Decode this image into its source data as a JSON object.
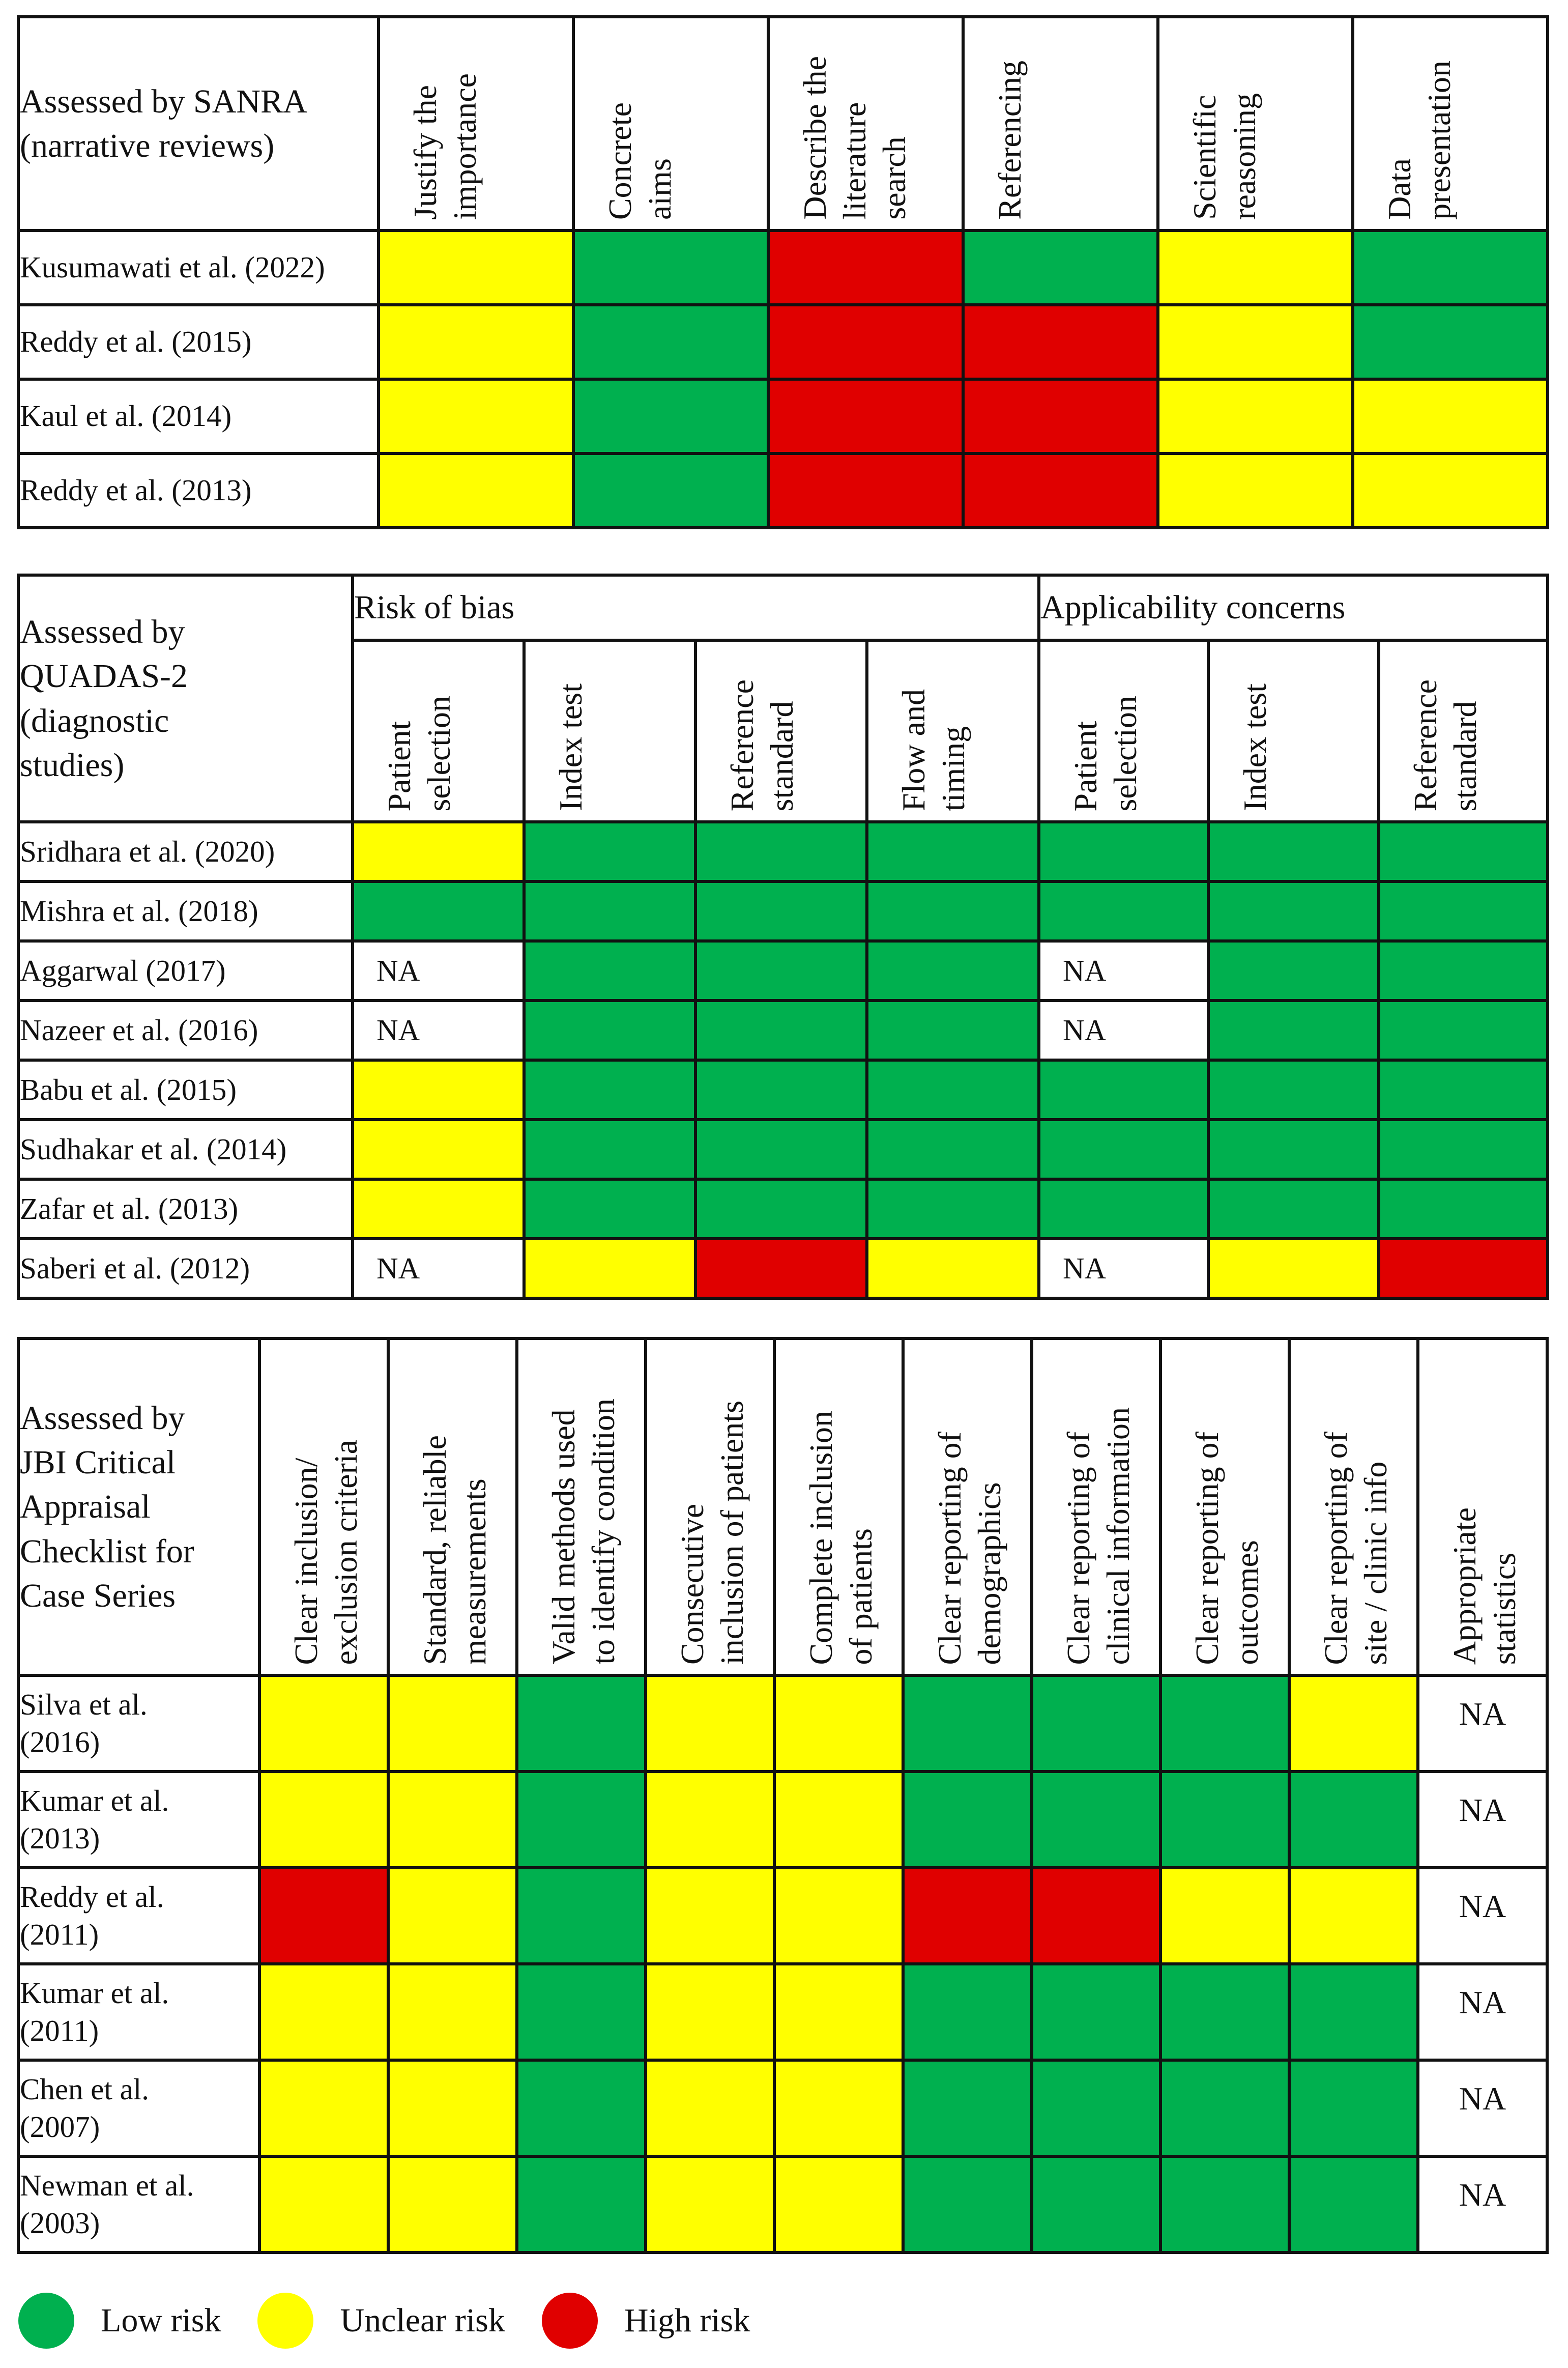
{
  "colors": {
    "low": "#00b04f",
    "unclear": "#ffff00",
    "high": "#e00000",
    "na": "#ffffff"
  },
  "sanra": {
    "corner": "Assessed by SANRA\n(narrative reviews)",
    "headers": [
      "Justify the\nimportance",
      "Concrete\naims",
      "Describe the\nliterature\nsearch",
      "Referencing",
      "Scientific\nreasoning",
      "Data\npresentation"
    ],
    "rows": [
      {
        "study": "Kusumawati et al. (2022)",
        "cells": [
          "unclear",
          "low",
          "high",
          "low",
          "unclear",
          "low"
        ]
      },
      {
        "study": "Reddy et al. (2015)",
        "cells": [
          "unclear",
          "low",
          "high",
          "high",
          "unclear",
          "low"
        ]
      },
      {
        "study": "Kaul et al. (2014)",
        "cells": [
          "unclear",
          "low",
          "high",
          "high",
          "unclear",
          "unclear"
        ]
      },
      {
        "study": "Reddy et al. (2013)",
        "cells": [
          "unclear",
          "low",
          "high",
          "high",
          "unclear",
          "unclear"
        ]
      }
    ]
  },
  "quadas": {
    "corner": "Assessed by\nQUADAS-2\n(diagnostic\nstudies)",
    "group_risk": "Risk of bias",
    "group_applicability": "Applicability concerns",
    "headers": [
      "Patient\nselection",
      "Index test",
      "Reference\nstandard",
      "Flow and\ntiming",
      "Patient\nselection",
      "Index test",
      "Reference\nstandard"
    ],
    "na_label": "NA",
    "rows": [
      {
        "study": "Sridhara et al. (2020)",
        "cells": [
          "unclear",
          "low",
          "low",
          "low",
          "low",
          "low",
          "low"
        ]
      },
      {
        "study": "Mishra et al. (2018)",
        "cells": [
          "low",
          "low",
          "low",
          "low",
          "low",
          "low",
          "low"
        ]
      },
      {
        "study": "Aggarwal (2017)",
        "cells": [
          "na",
          "low",
          "low",
          "low",
          "na",
          "low",
          "low"
        ]
      },
      {
        "study": "Nazeer et al. (2016)",
        "cells": [
          "na",
          "low",
          "low",
          "low",
          "na",
          "low",
          "low"
        ]
      },
      {
        "study": "Babu et al. (2015)",
        "cells": [
          "unclear",
          "low",
          "low",
          "low",
          "low",
          "low",
          "low"
        ]
      },
      {
        "study": "Sudhakar et al. (2014)",
        "cells": [
          "unclear",
          "low",
          "low",
          "low",
          "low",
          "low",
          "low"
        ]
      },
      {
        "study": "Zafar et al. (2013)",
        "cells": [
          "unclear",
          "low",
          "low",
          "low",
          "low",
          "low",
          "low"
        ]
      },
      {
        "study": "Saberi et al. (2012)",
        "cells": [
          "na",
          "unclear",
          "high",
          "unclear",
          "na",
          "unclear",
          "high"
        ]
      }
    ]
  },
  "jbi": {
    "corner": "Assessed by\nJBI Critical\nAppraisal\nChecklist for\nCase Series",
    "headers": [
      "Clear inclusion/\nexclusion criteria",
      "Standard, reliable\nmeasurements",
      "Valid methods used\nto identify condition",
      "Consecutive\ninclusion of patients",
      "Complete inclusion\nof patients",
      "Clear reporting of\ndemographics",
      "Clear reporting of\nclinical information",
      "Clear reporting of\noutcomes",
      "Clear reporting of\nsite / clinic info",
      "Appropriate\nstatistics"
    ],
    "na_label": "NA",
    "rows": [
      {
        "study": "Silva et al.\n(2016)",
        "cells": [
          "unclear",
          "unclear",
          "low",
          "unclear",
          "unclear",
          "low",
          "low",
          "low",
          "unclear",
          "na"
        ]
      },
      {
        "study": "Kumar et al.\n(2013)",
        "cells": [
          "unclear",
          "unclear",
          "low",
          "unclear",
          "unclear",
          "low",
          "low",
          "low",
          "low",
          "na"
        ]
      },
      {
        "study": "Reddy et al.\n(2011)",
        "cells": [
          "high",
          "unclear",
          "low",
          "unclear",
          "unclear",
          "high",
          "high",
          "unclear",
          "unclear",
          "na"
        ]
      },
      {
        "study": "Kumar et al.\n(2011)",
        "cells": [
          "unclear",
          "unclear",
          "low",
          "unclear",
          "unclear",
          "low",
          "low",
          "low",
          "low",
          "na"
        ]
      },
      {
        "study": "Chen et al.\n(2007)",
        "cells": [
          "unclear",
          "unclear",
          "low",
          "unclear",
          "unclear",
          "low",
          "low",
          "low",
          "low",
          "na"
        ]
      },
      {
        "study": "Newman et al.\n(2003)",
        "cells": [
          "unclear",
          "unclear",
          "low",
          "unclear",
          "unclear",
          "low",
          "low",
          "low",
          "low",
          "na"
        ]
      }
    ]
  },
  "legend": [
    {
      "label": "Low risk",
      "color": "#00b04f"
    },
    {
      "label": "Unclear risk",
      "color": "#ffff00"
    },
    {
      "label": "High risk",
      "color": "#e00000"
    }
  ]
}
